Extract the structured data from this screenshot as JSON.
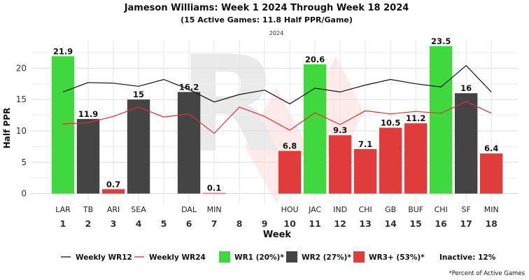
{
  "chart_data": {
    "type": "bar",
    "title": "Jameson Williams: Week 1 2024 Through Week 18 2024",
    "subtitle": "(15 Active Games: 11.8 Half PPR/Game)",
    "season_label": "2024",
    "xlabel": "Week",
    "ylabel": "Half PPR",
    "ylim": [
      -1.5,
      24.5
    ],
    "yticks": [
      0,
      5,
      10,
      15,
      20
    ],
    "grid": true,
    "weeks": [
      "1",
      "2",
      "3",
      "4",
      "5",
      "6",
      "7",
      "8",
      "9",
      "10",
      "11",
      "12",
      "13",
      "14",
      "15",
      "16",
      "17",
      "18"
    ],
    "opponents": [
      "LAR",
      "TB",
      "ARI",
      "SEA",
      "",
      "DAL",
      "MIN",
      "",
      "",
      "HOU",
      "JAC",
      "IND",
      "CHI",
      "GB",
      "BUF",
      "CHI",
      "SF",
      "MIN"
    ],
    "bars": [
      {
        "week": "1",
        "value": 21.9,
        "label": "21.9",
        "tier": "WR1"
      },
      {
        "week": "2",
        "value": 11.9,
        "label": "11.9",
        "tier": "WR2"
      },
      {
        "week": "3",
        "value": 0.7,
        "label": "0.7",
        "tier": "WR3+"
      },
      {
        "week": "4",
        "value": 15,
        "label": "15",
        "tier": "WR2"
      },
      {
        "week": "6",
        "value": 16.2,
        "label": "16.2",
        "tier": "WR2"
      },
      {
        "week": "7",
        "value": 0.1,
        "label": "0.1",
        "tier": "WR3+"
      },
      {
        "week": "10",
        "value": 6.8,
        "label": "6.8",
        "tier": "WR3+"
      },
      {
        "week": "11",
        "value": 20.6,
        "label": "20.6",
        "tier": "WR1"
      },
      {
        "week": "12",
        "value": 9.3,
        "label": "9.3",
        "tier": "WR3+"
      },
      {
        "week": "13",
        "value": 7.1,
        "label": "7.1",
        "tier": "WR3+"
      },
      {
        "week": "14",
        "value": 10.5,
        "label": "10.5",
        "tier": "WR3+"
      },
      {
        "week": "15",
        "value": 11.2,
        "label": "11.2",
        "tier": "WR3+"
      },
      {
        "week": "16",
        "value": 23.5,
        "label": "23.5",
        "tier": "WR1"
      },
      {
        "week": "17",
        "value": 16,
        "label": "16",
        "tier": "WR2"
      },
      {
        "week": "18",
        "value": 6.4,
        "label": "6.4",
        "tier": "WR3+"
      }
    ],
    "series": [
      {
        "name": "Weekly WR12",
        "color": "#111111",
        "values": [
          16.2,
          17.7,
          17.6,
          17.1,
          18.2,
          16.6,
          14.6,
          15.8,
          16.5,
          14.3,
          16.8,
          16.2,
          17.3,
          18.2,
          17.5,
          17.0,
          20.4,
          16.2
        ]
      },
      {
        "name": "Weekly WR24",
        "color": "#e0302e",
        "values": [
          11.1,
          11.3,
          12.3,
          13.8,
          12.2,
          12.7,
          9.6,
          13.8,
          12.3,
          10.1,
          12.9,
          11.0,
          13.2,
          12.7,
          13.1,
          12.8,
          14.7,
          12.8
        ]
      }
    ],
    "tiers": {
      "WR1": {
        "color": "#3fd93f"
      },
      "WR2": {
        "color": "#444444"
      },
      "WR3+": {
        "color": "#e03c3c"
      }
    },
    "legend": {
      "position": "bottom",
      "items": [
        {
          "kind": "line",
          "key": "Weekly WR12",
          "label": "Weekly WR12",
          "color": "#111111"
        },
        {
          "kind": "line",
          "key": "Weekly WR24",
          "label": "Weekly WR24",
          "color": "#e0302e"
        },
        {
          "kind": "box",
          "key": "WR1",
          "label": "WR1 (20%)*",
          "color": "#3fd93f"
        },
        {
          "kind": "box",
          "key": "WR2",
          "label": "WR2 (27%)*",
          "color": "#444444"
        },
        {
          "kind": "box",
          "key": "WR3+",
          "label": "WR3+ (53%)*",
          "color": "#e03c3c"
        },
        {
          "kind": "text",
          "key": "Inactive",
          "label": "Inactive: 12%"
        }
      ]
    },
    "footnote": "*Percent of Active Games"
  }
}
